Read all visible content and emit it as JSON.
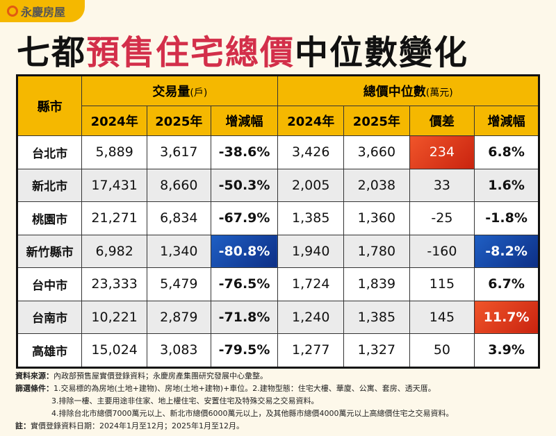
{
  "logo": {
    "text": "永慶房屋"
  },
  "title": {
    "part1": "七都",
    "part2": "預售住宅總價",
    "part3": "中位數變化"
  },
  "colors": {
    "accent": "#f5b800",
    "title_red": "#d32f4a",
    "highlight_hot": "#e03a1c",
    "highlight_cold": "#1a4aa8"
  },
  "table": {
    "city_header": "縣市",
    "group1": {
      "label": "交易量",
      "unit": "(戶)"
    },
    "group2": {
      "label": "總價中位數",
      "unit": "(萬元)"
    },
    "sub_headers": [
      "2024年",
      "2025年",
      "增減幅",
      "2024年",
      "2025年",
      "價差",
      "增減幅"
    ],
    "rows": [
      {
        "city": "台北市",
        "v2024": "5,889",
        "v2025": "3,617",
        "vchg": "-38.6%",
        "p2024": "3,426",
        "p2025": "3,660",
        "diff": "234",
        "pchg": "6.8%"
      },
      {
        "city": "新北市",
        "v2024": "17,431",
        "v2025": "8,660",
        "vchg": "-50.3%",
        "p2024": "2,005",
        "p2025": "2,038",
        "diff": "33",
        "pchg": "1.6%"
      },
      {
        "city": "桃園市",
        "v2024": "21,271",
        "v2025": "6,834",
        "vchg": "-67.9%",
        "p2024": "1,385",
        "p2025": "1,360",
        "diff": "-25",
        "pchg": "-1.8%"
      },
      {
        "city": "新竹縣市",
        "v2024": "6,982",
        "v2025": "1,340",
        "vchg": "-80.8%",
        "p2024": "1,940",
        "p2025": "1,780",
        "diff": "-160",
        "pchg": "-8.2%"
      },
      {
        "city": "台中市",
        "v2024": "23,333",
        "v2025": "5,479",
        "vchg": "-76.5%",
        "p2024": "1,724",
        "p2025": "1,839",
        "diff": "115",
        "pchg": "6.7%"
      },
      {
        "city": "台南市",
        "v2024": "10,221",
        "v2025": "2,879",
        "vchg": "-71.8%",
        "p2024": "1,240",
        "p2025": "1,385",
        "diff": "145",
        "pchg": "11.7%"
      },
      {
        "city": "高雄市",
        "v2024": "15,024",
        "v2025": "3,083",
        "vchg": "-79.5%",
        "p2024": "1,277",
        "p2025": "1,327",
        "diff": "50",
        "pchg": "3.9%"
      }
    ]
  },
  "notes": {
    "source_label": "資料來源：",
    "source": "內政部預售屋實價登錄資料；永慶房產集團研究發展中心彙整。",
    "filter_label": "篩選條件：",
    "filter1": "1.交易標的為房地(土地+建物)、房地(土地+建物)+車位。2.建物型態：住宅大樓、華廈、公寓、套房、透天厝。",
    "filter3": "3.排除一樓、主要用途非住家、地上權住宅、安置住宅及特殊交易之交易資料。",
    "filter4": "4.排除台北市總價7000萬元以上、新北市總價6000萬元以上，及其他縣市總價4000萬元以上高總價住宅之交易資料。",
    "note_label": "註：",
    "note": "實價登錄資料日期：2024年1月至12月；2025年1月至12月。"
  }
}
